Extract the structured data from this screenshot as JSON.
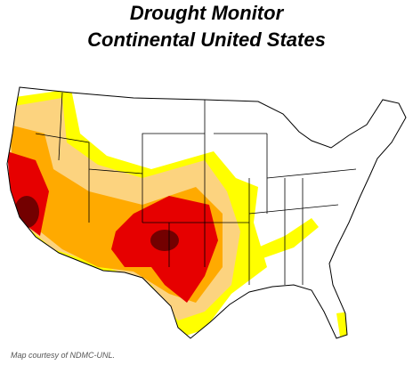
{
  "header": {
    "title": [
      "Drought Monitor",
      "Continental United States"
    ]
  },
  "footer": {
    "credit": "Map courtesy of NDMC-UNL."
  }
}
